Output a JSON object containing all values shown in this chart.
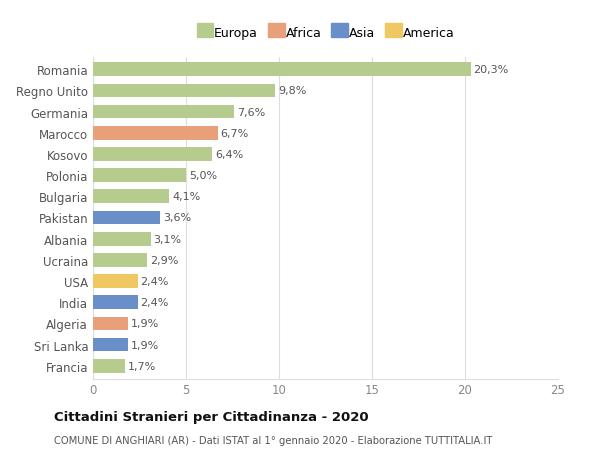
{
  "categories": [
    "Francia",
    "Sri Lanka",
    "Algeria",
    "India",
    "USA",
    "Ucraina",
    "Albania",
    "Pakistan",
    "Bulgaria",
    "Polonia",
    "Kosovo",
    "Marocco",
    "Germania",
    "Regno Unito",
    "Romania"
  ],
  "values": [
    1.7,
    1.9,
    1.9,
    2.4,
    2.4,
    2.9,
    3.1,
    3.6,
    4.1,
    5.0,
    6.4,
    6.7,
    7.6,
    9.8,
    20.3
  ],
  "labels": [
    "1,7%",
    "1,9%",
    "1,9%",
    "2,4%",
    "2,4%",
    "2,9%",
    "3,1%",
    "3,6%",
    "4,1%",
    "5,0%",
    "6,4%",
    "6,7%",
    "7,6%",
    "9,8%",
    "20,3%"
  ],
  "colors": [
    "#b5cc8e",
    "#6a8fc8",
    "#e8a07a",
    "#6a8fc8",
    "#f0c862",
    "#b5cc8e",
    "#b5cc8e",
    "#6a8fc8",
    "#b5cc8e",
    "#b5cc8e",
    "#b5cc8e",
    "#e8a07a",
    "#b5cc8e",
    "#b5cc8e",
    "#b5cc8e"
  ],
  "legend_labels": [
    "Europa",
    "Africa",
    "Asia",
    "America"
  ],
  "legend_colors": [
    "#b5cc8e",
    "#e8a07a",
    "#6a8fc8",
    "#f0c862"
  ],
  "title": "Cittadini Stranieri per Cittadinanza - 2020",
  "subtitle": "COMUNE DI ANGHIARI (AR) - Dati ISTAT al 1° gennaio 2020 - Elaborazione TUTTITALIA.IT",
  "xlim": [
    0,
    25
  ],
  "xticks": [
    0,
    5,
    10,
    15,
    20,
    25
  ],
  "background_color": "#ffffff",
  "grid_color": "#dddddd",
  "bar_height": 0.65
}
